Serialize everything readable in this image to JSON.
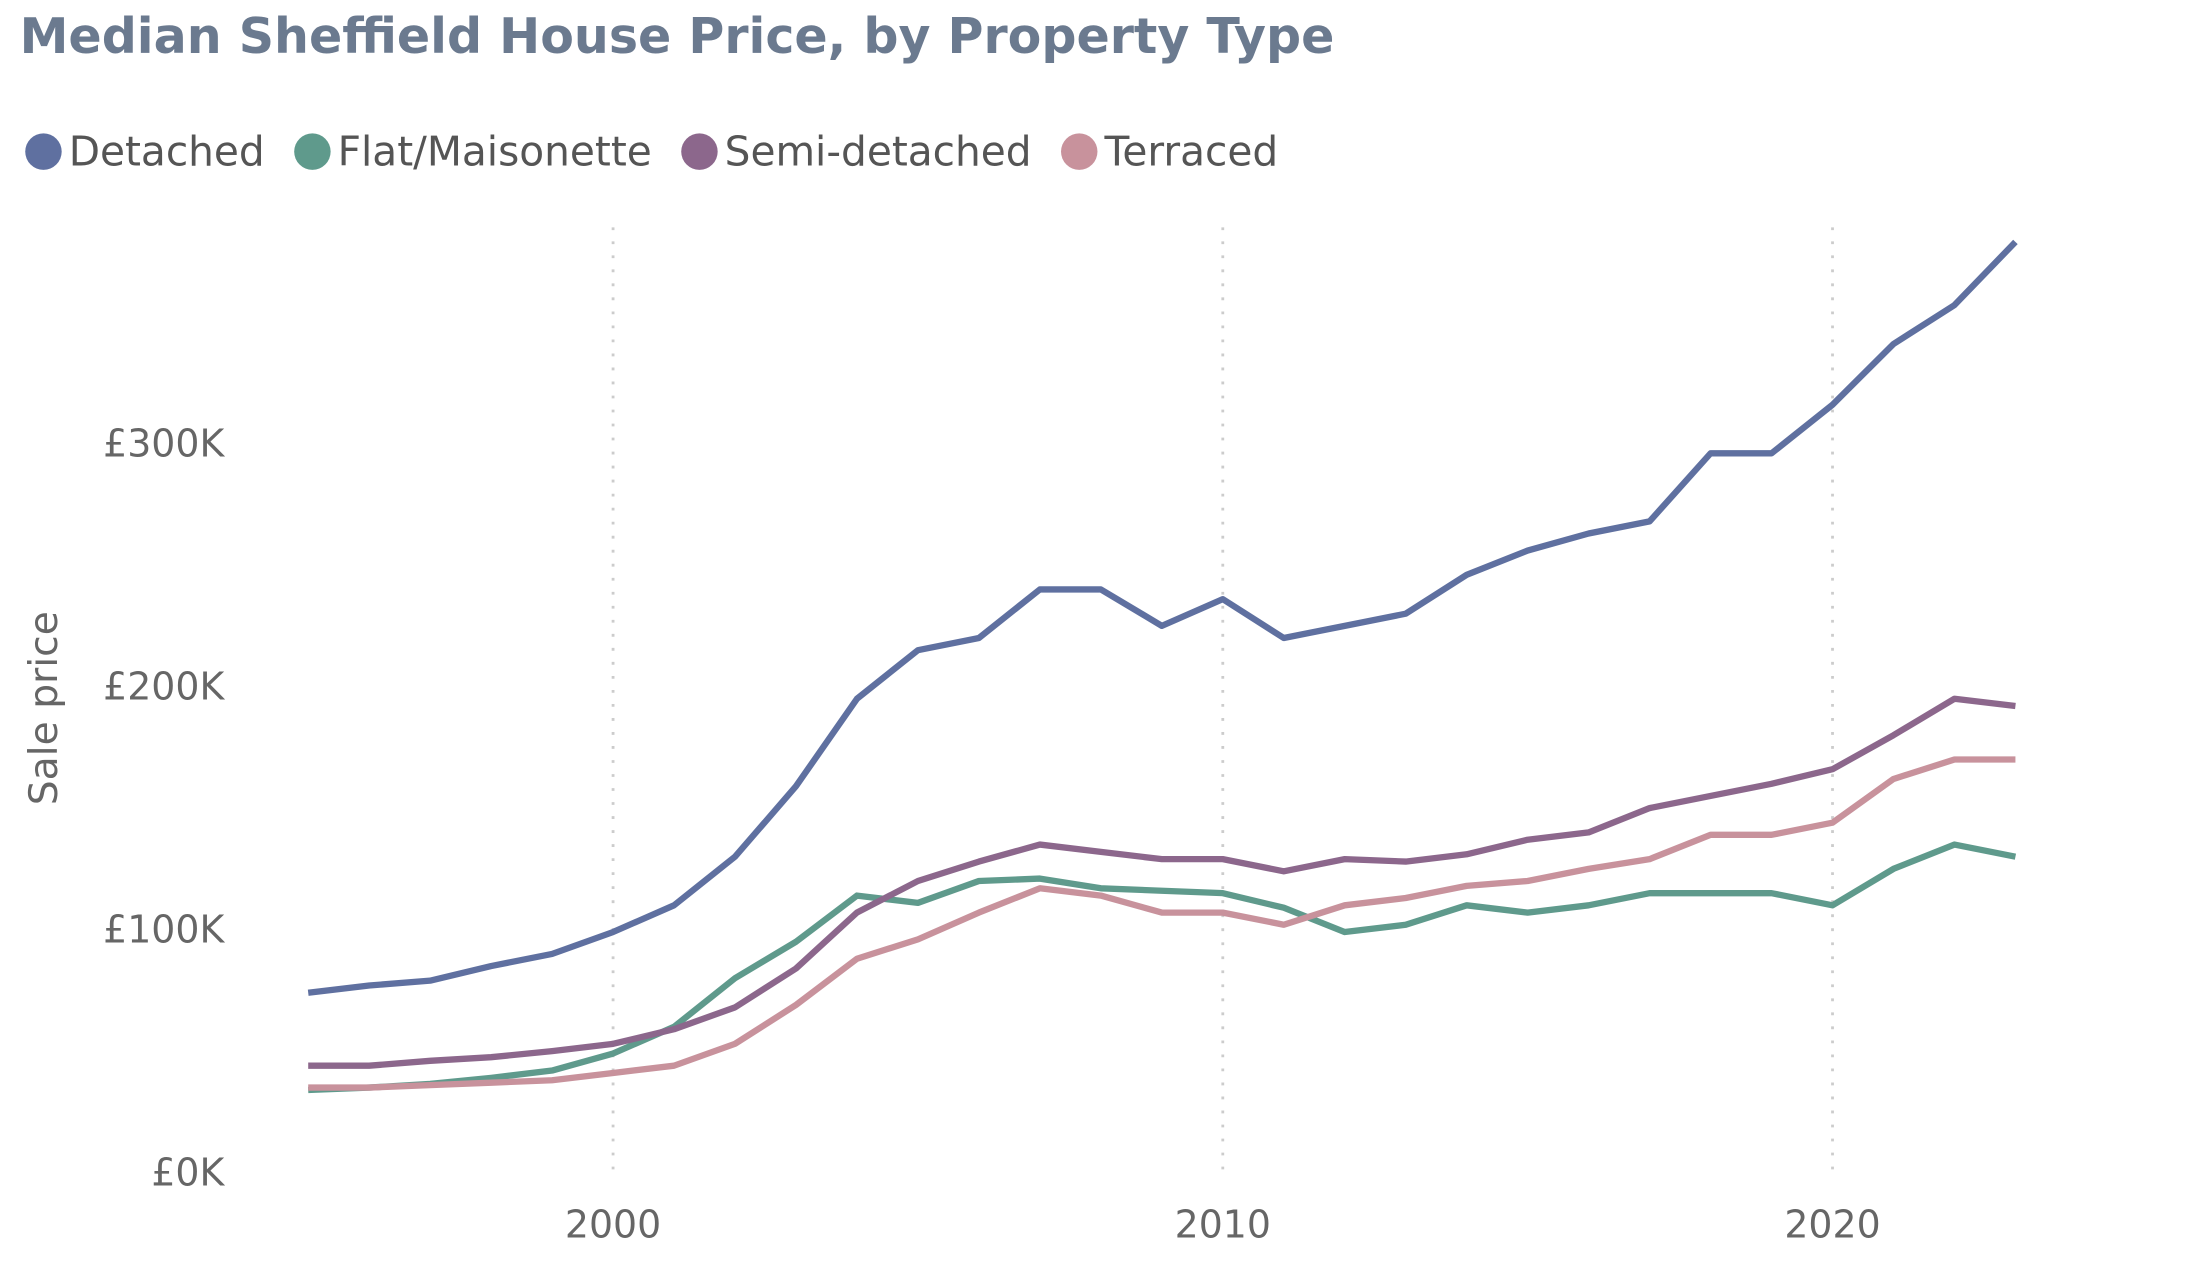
{
  "chart_data": {
    "type": "line",
    "title": "Median Sheffield House Price, by Property Type",
    "y_label": "Sale price",
    "x": [
      1995,
      1996,
      1997,
      1998,
      1999,
      2000,
      2001,
      2002,
      2003,
      2004,
      2005,
      2006,
      2007,
      2008,
      2009,
      2010,
      2011,
      2012,
      2013,
      2014,
      2015,
      2016,
      2017,
      2018,
      2019,
      2020,
      2021,
      2022,
      2023
    ],
    "series": [
      {
        "name": "Detached",
        "color": "#5f70a0",
        "values": [
          75000,
          78000,
          80000,
          86000,
          91000,
          100000,
          111000,
          131000,
          160000,
          196000,
          216000,
          221000,
          241000,
          241000,
          226000,
          237000,
          221000,
          226000,
          231000,
          247000,
          257000,
          264000,
          269000,
          297000,
          297000,
          317000,
          342000,
          358000,
          384000
        ]
      },
      {
        "name": "Flat/Maisonette",
        "color": "#5f9a8c",
        "values": [
          35000,
          36000,
          37500,
          40000,
          43000,
          50000,
          61000,
          81000,
          96000,
          115000,
          112000,
          121000,
          122000,
          118000,
          117000,
          116000,
          110000,
          100000,
          103000,
          111000,
          108000,
          111000,
          116000,
          116000,
          116000,
          111000,
          126000,
          136000,
          131000
        ]
      },
      {
        "name": "Semi-detached",
        "color": "#8c678c",
        "values": [
          45000,
          45000,
          47000,
          48500,
          51000,
          54000,
          60000,
          69000,
          85000,
          108000,
          121000,
          129000,
          136000,
          133000,
          130000,
          130000,
          125000,
          130000,
          129000,
          132000,
          138000,
          141000,
          151000,
          156000,
          161000,
          167000,
          181000,
          196000,
          193000
        ]
      },
      {
        "name": "Terraced",
        "color": "#c8929c",
        "values": [
          36000,
          36000,
          37000,
          38000,
          39000,
          42000,
          45000,
          54000,
          70000,
          89000,
          97000,
          108000,
          118000,
          115000,
          108000,
          108000,
          103000,
          111000,
          114000,
          119000,
          121000,
          126000,
          130000,
          140000,
          140000,
          145000,
          163000,
          171000,
          171000
        ]
      }
    ],
    "xlim": [
      1993.9,
      2025.4
    ],
    "xticks": [
      2000,
      2010,
      2020
    ],
    "ylim": [
      0,
      390000
    ],
    "yticks": [
      {
        "value": 0,
        "label": "£0K"
      },
      {
        "value": 100000,
        "label": "£100K"
      },
      {
        "value": 200000,
        "label": "£200K"
      },
      {
        "value": 300000,
        "label": "£300K"
      }
    ],
    "x_grid": true,
    "legend": "top-left"
  }
}
